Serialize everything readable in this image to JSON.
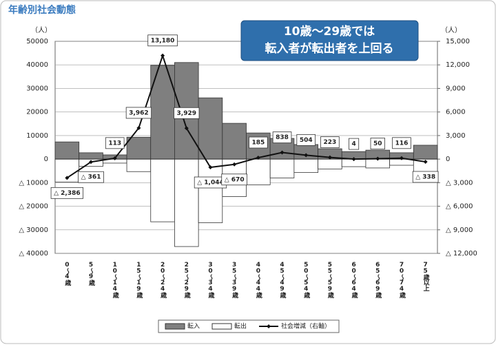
{
  "chart_data": {
    "type": "bar-line",
    "title": "年齢別社会動態",
    "annotation": [
      "10歳～29歳では",
      "転入者が転出者を上回る"
    ],
    "y_unit": "（人）",
    "y2_unit": "（人）",
    "categories": [
      "0～4歳",
      "5～9歳",
      "10～14歳",
      "15～19歳",
      "20～24歳",
      "25～29歳",
      "30～34歳",
      "35～39歳",
      "40～44歳",
      "45～49歳",
      "50～54歳",
      "55～59歳",
      "60～64歳",
      "65～69歳",
      "70～74歳",
      "75歳以上"
    ],
    "series": [
      {
        "name": "転入",
        "type": "bar",
        "color": "#7f7f7f",
        "values": [
          7300,
          2700,
          1800,
          9300,
          39800,
          41000,
          26000,
          15200,
          11100,
          8800,
          6200,
          4400,
          3200,
          3800,
          2700,
          5900
        ]
      },
      {
        "name": "転出",
        "type": "bar",
        "color": "#ffffff",
        "values": [
          -9700,
          -3100,
          -1700,
          -5300,
          -26600,
          -37100,
          -27000,
          -15900,
          -10900,
          -8000,
          -5700,
          -4200,
          -3200,
          -3750,
          -2600,
          -6200
        ]
      },
      {
        "name": "社会増減（右軸）",
        "type": "line",
        "axis": "y2",
        "color": "#111111",
        "values": [
          -2386,
          -361,
          113,
          3962,
          13180,
          3929,
          -1044,
          -670,
          185,
          838,
          504,
          223,
          4,
          50,
          116,
          -338
        ],
        "value_labels": [
          "△ 2,386",
          "△ 361",
          "113",
          "3,962",
          "13,180",
          "3,929",
          "△ 1,044",
          "△ 670",
          "185",
          "838",
          "504",
          "223",
          "4",
          "50",
          "116",
          "△ 338"
        ]
      }
    ],
    "ylim": [
      -40000,
      50000
    ],
    "yticks": [
      {
        "value": -40000,
        "label": "△ 40000"
      },
      {
        "value": -30000,
        "label": "△ 30000"
      },
      {
        "value": -20000,
        "label": "△ 20000"
      },
      {
        "value": -10000,
        "label": "△ 10000"
      },
      0,
      10000,
      20000,
      30000,
      40000,
      50000
    ],
    "y2lim": [
      -12000,
      15000
    ],
    "y2ticks": [
      {
        "value": -12000,
        "label": "△ 12,000"
      },
      {
        "value": -9000,
        "label": "△ 9,000"
      },
      {
        "value": -6000,
        "label": "△ 6,000"
      },
      {
        "value": -3000,
        "label": "△ 3,000"
      },
      0,
      {
        "value": 3000,
        "label": "3,000"
      },
      {
        "value": 6000,
        "label": "6,000"
      },
      {
        "value": 9000,
        "label": "9,000"
      },
      {
        "value": 12000,
        "label": "12,000"
      },
      {
        "value": 15000,
        "label": "15,000"
      }
    ],
    "grid": true
  }
}
